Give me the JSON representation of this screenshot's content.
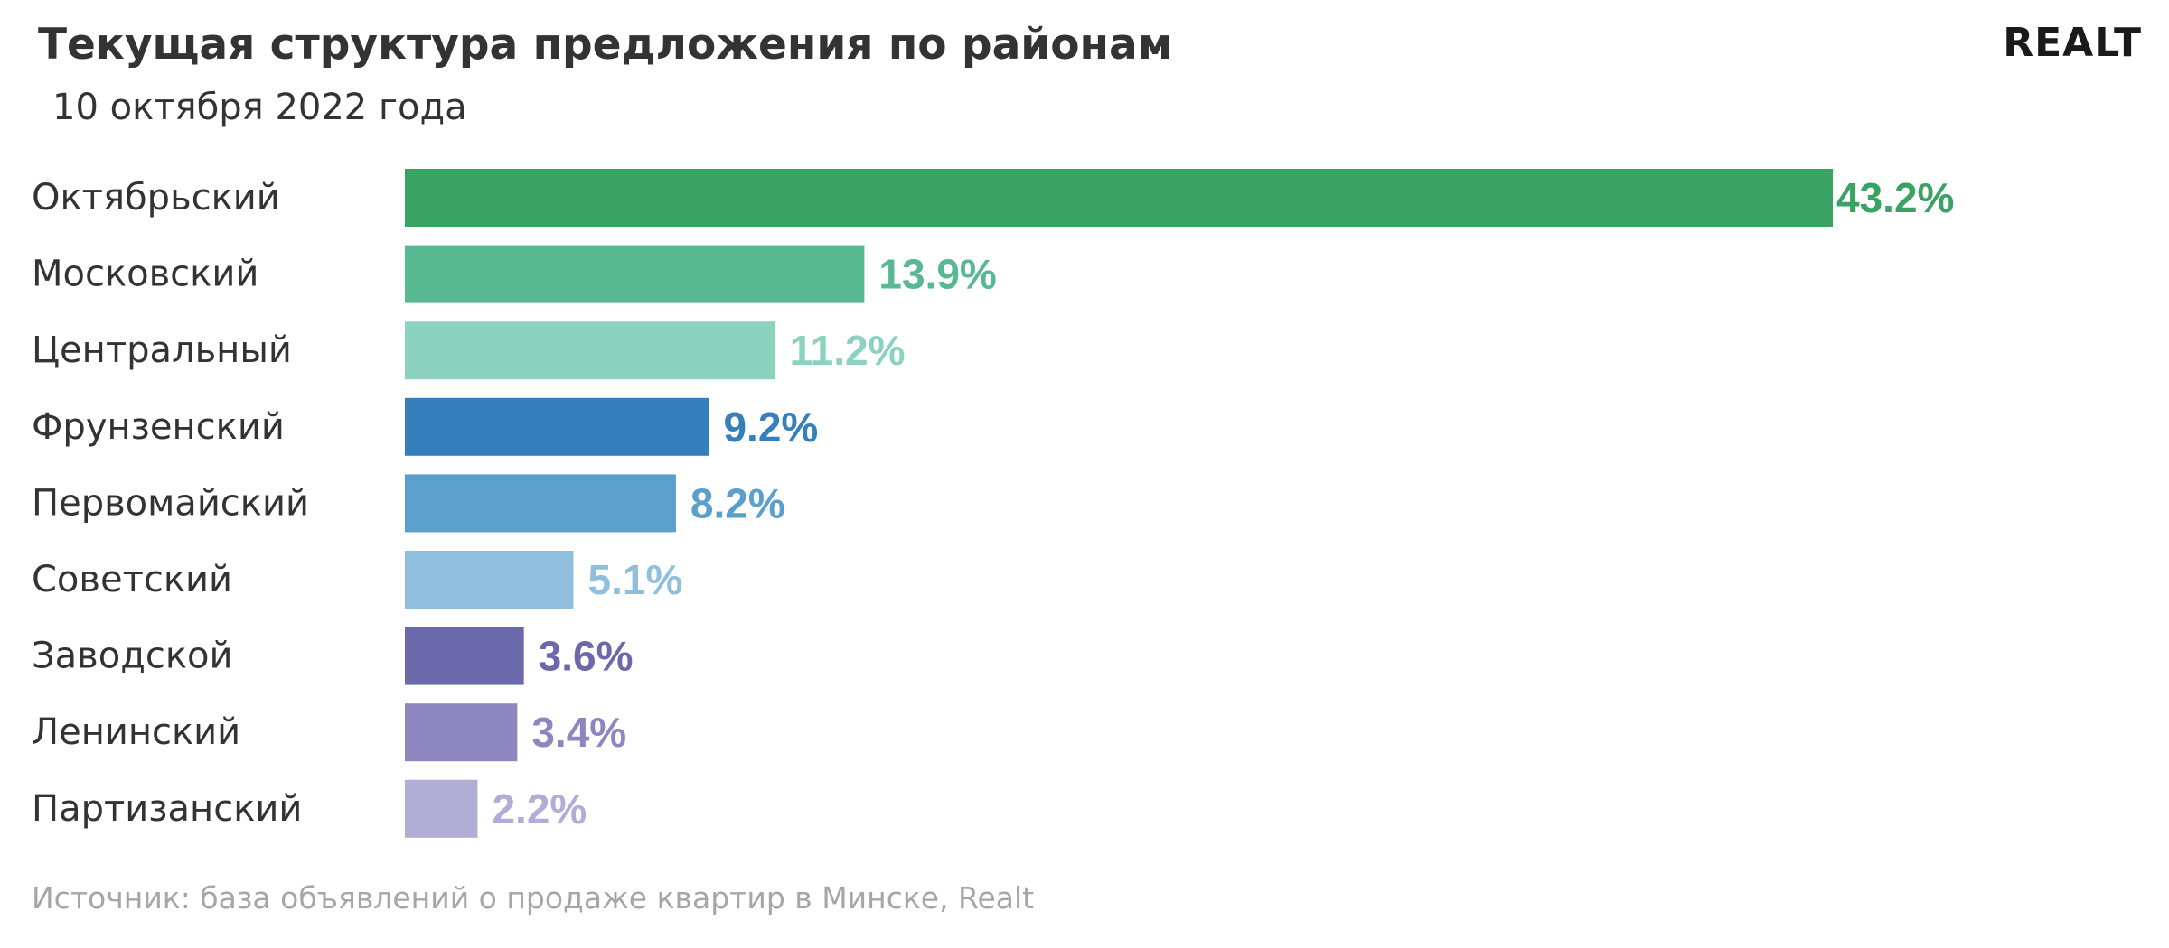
{
  "header": {
    "title": "Текущая структура предложения по районам",
    "subtitle": "10 октября 2022 года",
    "logo_text": "REALT"
  },
  "footer": {
    "source": "Источник: база объявлений о продаже квартир в Минске, Realt"
  },
  "chart_data": {
    "type": "bar",
    "orientation": "horizontal",
    "title": "Текущая структура предложения по районам",
    "subtitle": "10 октября 2022 года",
    "xlabel": "",
    "ylabel": "",
    "grid": false,
    "legend": "none",
    "categories": [
      "Октябрьский",
      "Московский",
      "Центральный",
      "Фрунзенский",
      "Первомайский",
      "Советский",
      "Заводской",
      "Ленинский",
      "Партизанский"
    ],
    "values": [
      43.2,
      13.9,
      11.2,
      9.2,
      8.2,
      5.1,
      3.6,
      3.4,
      2.2
    ],
    "value_labels": [
      "43.2%",
      "13.9%",
      "11.2%",
      "9.2%",
      "8.2%",
      "5.1%",
      "3.6%",
      "3.4%",
      "2.2%"
    ],
    "colors": [
      "#38a362",
      "#57b892",
      "#8bd3be",
      "#357fbd",
      "#5b9fcd",
      "#90bfdd",
      "#6c68ac",
      "#8e87bf",
      "#b0aed6"
    ]
  }
}
